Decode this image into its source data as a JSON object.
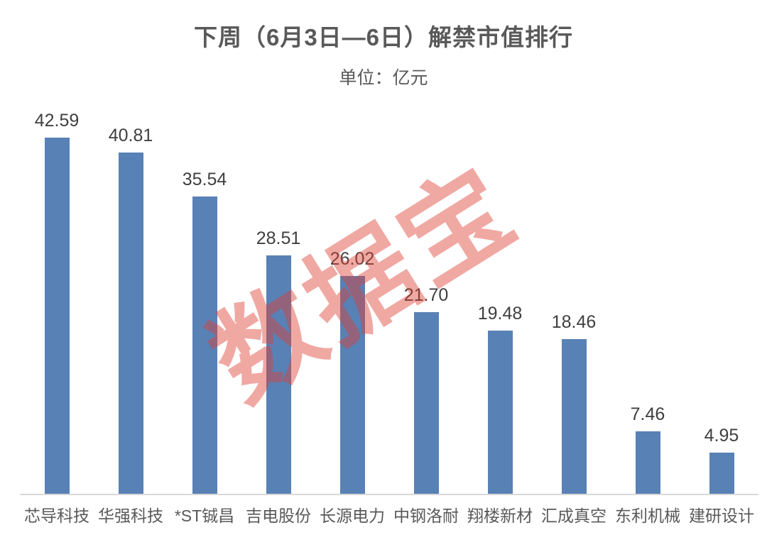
{
  "chart": {
    "title": "下周（6月3日—6日）解禁市值排行",
    "subtitle": "单位：亿元",
    "watermark": "数据宝"
  },
  "chart_data": {
    "type": "bar",
    "title": "下周（6月3日—6日）解禁市值排行",
    "subtitle": "单位：亿元",
    "xlabel": "",
    "ylabel": "单位：亿元",
    "categories": [
      "芯导科技",
      "华强科技",
      "*ST铖昌",
      "吉电股份",
      "长源电力",
      "中钢洛耐",
      "翔楼新材",
      "汇成真空",
      "东利机械",
      "建研设计"
    ],
    "values": [
      42.59,
      40.81,
      35.54,
      28.51,
      26.02,
      21.7,
      19.48,
      18.46,
      7.46,
      4.95
    ],
    "value_label_decimals": 2,
    "ylim": [
      0,
      46
    ],
    "grid": false,
    "legend": "none",
    "watermark_text": "数据宝"
  },
  "colors": {
    "bar": "#5881B6",
    "axis": "#D9D9D9",
    "title_text": "#595959",
    "value_text": "#3F3F3F",
    "category_text": "#595959",
    "watermark": "rgba(222, 62, 51, 0.45)"
  }
}
